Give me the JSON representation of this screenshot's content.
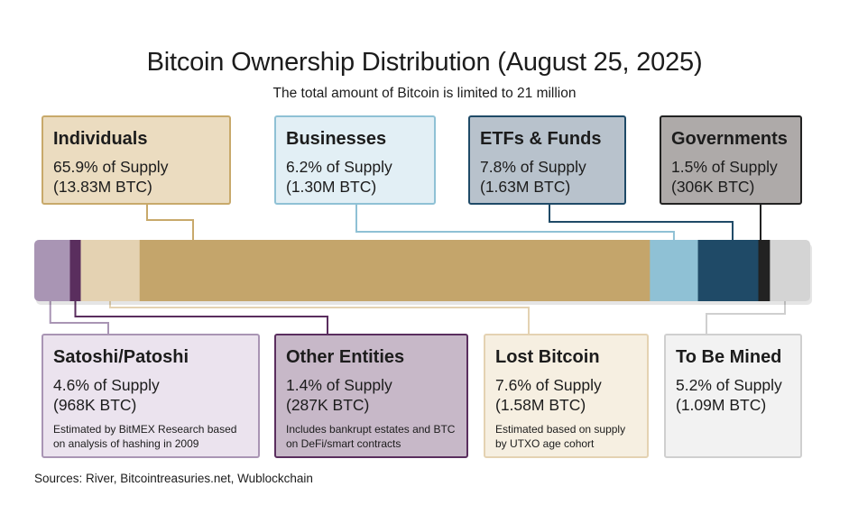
{
  "chart_data": {
    "type": "bar",
    "orientation": "horizontal-stacked",
    "title": "Bitcoin Ownership Distribution (August 25, 2025)",
    "subtitle": "The total amount of Bitcoin is limited to 21 million",
    "unit": "% of supply",
    "segments": [
      {
        "name": "Satoshi/Patoshi",
        "value": 4.6,
        "color": "#a995b4"
      },
      {
        "name": "Other Entities",
        "value": 1.4,
        "color": "#5a2e5e"
      },
      {
        "name": "Lost Bitcoin",
        "value": 7.6,
        "color": "#e4d2b2"
      },
      {
        "name": "Individuals",
        "value": 65.9,
        "color": "#c4a56b"
      },
      {
        "name": "Businesses",
        "value": 6.2,
        "color": "#8fc1d5"
      },
      {
        "name": "ETFs & Funds",
        "value": 7.8,
        "color": "#1f4a67"
      },
      {
        "name": "Governments",
        "value": 1.5,
        "color": "#222222"
      },
      {
        "name": "To Be Mined",
        "value": 5.2,
        "color": "#d4d4d4"
      }
    ]
  },
  "labels": {
    "individuals": {
      "name": "Individuals",
      "pct": "65.9% of Supply",
      "btc": "(13.83M BTC)"
    },
    "businesses": {
      "name": "Businesses",
      "pct": "6.2% of Supply",
      "btc": "(1.30M BTC)"
    },
    "etfs": {
      "name": "ETFs & Funds",
      "pct": "7.8% of Supply",
      "btc": "(1.63M BTC)"
    },
    "governments": {
      "name": "Governments",
      "pct": "1.5% of Supply",
      "btc": "(306K BTC)"
    },
    "satoshi": {
      "name": "Satoshi/Patoshi",
      "pct": "4.6% of Supply",
      "btc": "(968K BTC)",
      "note": "Estimated by BitMEX Research based on analysis of hashing in 2009"
    },
    "other": {
      "name": "Other Entities",
      "pct": "1.4% of Supply",
      "btc": "(287K BTC)",
      "note": "Includes bankrupt estates and BTC on DeFi/smart contracts"
    },
    "lost": {
      "name": "Lost Bitcoin",
      "pct": "7.6% of Supply",
      "btc": "(1.58M BTC)",
      "note": "Estimated based on supply by UTXO age cohort"
    },
    "mined": {
      "name": "To Be Mined",
      "pct": "5.2% of Supply",
      "btc": "(1.09M BTC)"
    }
  },
  "sources": "Sources: River, Bitcointreasuries.net, Wublockchain"
}
